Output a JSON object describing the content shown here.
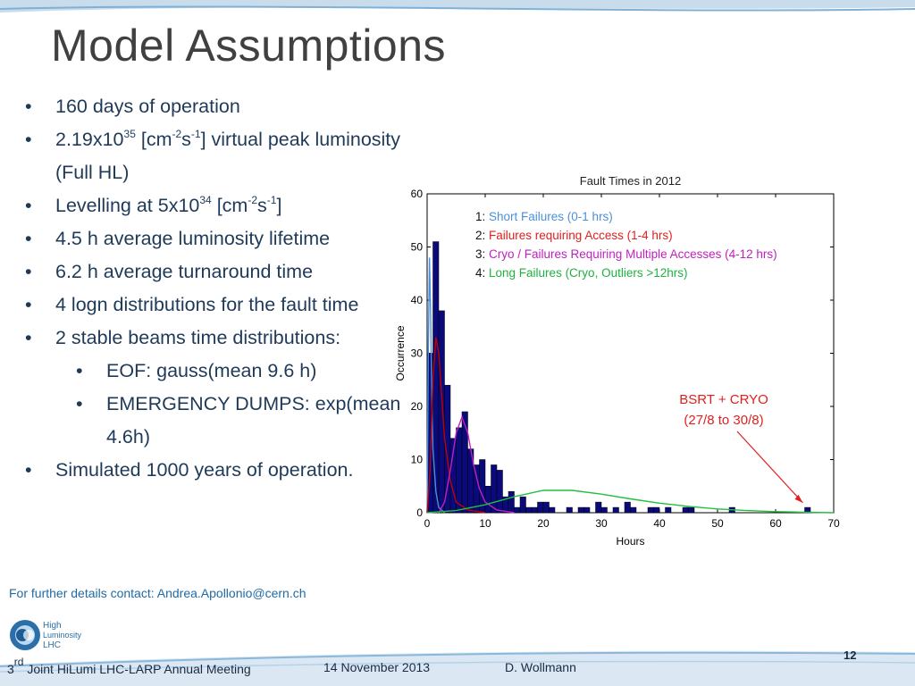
{
  "slide": {
    "title": "Model Assumptions",
    "bullets": {
      "b1": "160 days of operation",
      "b2_pre": "2.19x10",
      "b2_sup1": "35",
      "b2_mid1": " [cm",
      "b2_sup2": "-2",
      "b2_mid2": "s",
      "b2_sup3": "-1",
      "b2_post": "] virtual peak luminosity",
      "b2_cont": "(Full HL)",
      "b3_pre": "Levelling at 5x10",
      "b3_sup1": "34",
      "b3_mid1": " [cm",
      "b3_sup2": "-2",
      "b3_mid2": "s",
      "b3_sup3": "-1",
      "b3_post": "]",
      "b4": "4.5 h average luminosity lifetime",
      "b5": "6.2 h average turnaround time",
      "b6": "4 logn distributions for the fault time",
      "b7": "2 stable beams time distributions:",
      "s1": "EOF: gauss(mean 9.6 h)",
      "s2": "EMERGENCY DUMPS: exp(mean",
      "s2_cont": "4.6h)",
      "b8": " Simulated 1000 years of operation."
    },
    "bullet_char": "•",
    "contact": "For further details contact: Andrea.Apollonio@cern.ch",
    "footer": {
      "meeting_sup": "rd",
      "meeting_num": "3",
      "meeting_text": " Joint HiLumi LHC-LARP Annual Meeting",
      "date": "14 November 2013",
      "author": "D. Wollmann",
      "page": "12"
    },
    "logo": {
      "line1": "High",
      "line2": "Luminosity",
      "line3": "LHC"
    }
  },
  "chart_data": {
    "type": "bar",
    "title": "Fault Times in 2012",
    "xlabel": "Hours",
    "ylabel": "Occurrence",
    "xlim": [
      0,
      70
    ],
    "ylim": [
      0,
      60
    ],
    "xticks": [
      0,
      10,
      20,
      30,
      40,
      50,
      60,
      70
    ],
    "yticks": [
      0,
      10,
      20,
      30,
      40,
      50,
      60
    ],
    "bin_width": 1,
    "bins": [
      {
        "x": 0,
        "y": 30
      },
      {
        "x": 1,
        "y": 51
      },
      {
        "x": 2,
        "y": 38
      },
      {
        "x": 3,
        "y": 24
      },
      {
        "x": 4,
        "y": 14
      },
      {
        "x": 5,
        "y": 16
      },
      {
        "x": 6,
        "y": 19
      },
      {
        "x": 7,
        "y": 12
      },
      {
        "x": 8,
        "y": 9
      },
      {
        "x": 9,
        "y": 10
      },
      {
        "x": 10,
        "y": 5
      },
      {
        "x": 11,
        "y": 9
      },
      {
        "x": 12,
        "y": 8
      },
      {
        "x": 13,
        "y": 3
      },
      {
        "x": 14,
        "y": 4
      },
      {
        "x": 15,
        "y": 1
      },
      {
        "x": 16,
        "y": 3
      },
      {
        "x": 17,
        "y": 1
      },
      {
        "x": 18,
        "y": 1
      },
      {
        "x": 19,
        "y": 2
      },
      {
        "x": 20,
        "y": 2
      },
      {
        "x": 21,
        "y": 1
      },
      {
        "x": 24,
        "y": 1
      },
      {
        "x": 26,
        "y": 1
      },
      {
        "x": 27,
        "y": 1
      },
      {
        "x": 29,
        "y": 2
      },
      {
        "x": 30,
        "y": 1
      },
      {
        "x": 32,
        "y": 1
      },
      {
        "x": 34,
        "y": 2
      },
      {
        "x": 35,
        "y": 1
      },
      {
        "x": 38,
        "y": 1
      },
      {
        "x": 39,
        "y": 1
      },
      {
        "x": 41,
        "y": 1
      },
      {
        "x": 44,
        "y": 1
      },
      {
        "x": 45,
        "y": 1
      },
      {
        "x": 52,
        "y": 1
      },
      {
        "x": 65,
        "y": 1
      }
    ],
    "fit_curves": [
      {
        "color": "#4a90d9",
        "points": [
          [
            0,
            0
          ],
          [
            0.2,
            30
          ],
          [
            0.4,
            48
          ],
          [
            0.6,
            38
          ],
          [
            0.8,
            22
          ],
          [
            1,
            12
          ],
          [
            1.5,
            4
          ],
          [
            2,
            1
          ],
          [
            3,
            0
          ]
        ]
      },
      {
        "color": "#c00000",
        "points": [
          [
            0,
            0
          ],
          [
            0.5,
            8
          ],
          [
            1,
            25
          ],
          [
            1.5,
            33
          ],
          [
            2,
            30
          ],
          [
            2.5,
            22
          ],
          [
            3,
            14
          ],
          [
            4,
            6
          ],
          [
            5,
            2
          ],
          [
            7,
            0.5
          ],
          [
            10,
            0
          ]
        ]
      },
      {
        "color": "#c020c0",
        "points": [
          [
            2,
            0
          ],
          [
            3,
            2
          ],
          [
            4,
            8
          ],
          [
            5,
            15
          ],
          [
            6,
            18
          ],
          [
            7,
            15
          ],
          [
            8,
            9
          ],
          [
            9,
            4.5
          ],
          [
            10,
            2
          ],
          [
            12,
            0.5
          ],
          [
            15,
            0
          ]
        ]
      },
      {
        "color": "#20c040",
        "points": [
          [
            0,
            0
          ],
          [
            5,
            0.4
          ],
          [
            10,
            1.5
          ],
          [
            15,
            3
          ],
          [
            20,
            4.2
          ],
          [
            25,
            4.2
          ],
          [
            30,
            3.5
          ],
          [
            35,
            2.6
          ],
          [
            40,
            1.8
          ],
          [
            45,
            1.2
          ],
          [
            50,
            0.7
          ],
          [
            55,
            0.4
          ],
          [
            60,
            0.2
          ],
          [
            65,
            0.1
          ],
          [
            70,
            0
          ]
        ]
      }
    ],
    "legend": [
      {
        "num": "1: ",
        "text": "Short Failures (0-1 hrs)",
        "color": "#4a90d9"
      },
      {
        "num": "2: ",
        "text": "Failures requiring Access (1-4 hrs)",
        "color": "#e02020"
      },
      {
        "num": "3: ",
        "text": "Cryo / Failures Requiring Multiple Accesses (4-12 hrs)",
        "color": "#c020c0"
      },
      {
        "num": "4: ",
        "text": "Long Failures (Cryo, Outliers >12hrs)",
        "color": "#20b040"
      }
    ],
    "legend_position": "top-right",
    "annotation": {
      "line1": "BSRT + CRYO",
      "line2": "(27/8 to 30/8)",
      "color": "#e02020",
      "points_to_x": 65,
      "points_to_y": 1.2
    },
    "bar_color": "#0a0a7a"
  }
}
